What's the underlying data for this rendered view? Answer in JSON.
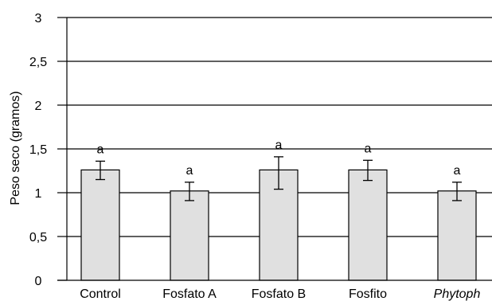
{
  "chart_data": {
    "type": "bar",
    "title": "",
    "xlabel": "",
    "ylabel": "Peso seco (gramos)",
    "ylim": [
      0,
      3
    ],
    "yticks": [
      0,
      0.5,
      1,
      1.5,
      2,
      2.5,
      3
    ],
    "ytick_labels": [
      "0",
      "0,5",
      "1",
      "1,5",
      "2",
      "2,5",
      "3"
    ],
    "grid": "horizontal",
    "categories": [
      "Control",
      "Fosfato A",
      "Fosfato B",
      "Fosfito",
      "Phytoph"
    ],
    "italic_categories": [
      "Phytoph"
    ],
    "values": [
      1.26,
      1.02,
      1.26,
      1.26,
      1.02
    ],
    "error_low": [
      1.15,
      0.91,
      1.04,
      1.14,
      0.91
    ],
    "error_high": [
      1.36,
      1.12,
      1.41,
      1.37,
      1.12
    ],
    "significance_labels": [
      "a",
      "a",
      "a",
      "a",
      "a"
    ],
    "bar_color": "#e0e0e0",
    "line_color": "#000000"
  }
}
